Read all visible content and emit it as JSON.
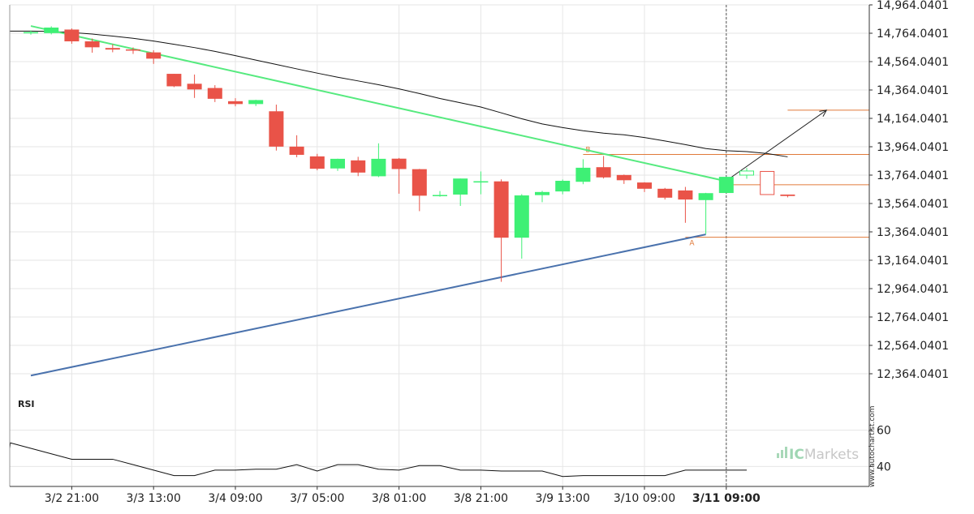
{
  "chart_data": [
    {
      "type": "candlestick",
      "title": "",
      "ylabel": "",
      "ylim": [
        12164.0401,
        14964.0401
      ],
      "y_ticks": [
        "14,964.0401",
        "14,764.0401",
        "14,564.0401",
        "14,364.0401",
        "14,164.0401",
        "13,964.0401",
        "13,764.0401",
        "13,564.0401",
        "13,364.0401",
        "13,164.0401",
        "12,964.0401",
        "12,764.0401",
        "12,564.0401",
        "12,364.0401"
      ],
      "y_tick_values": [
        14964.0401,
        14764.0401,
        14564.0401,
        14364.0401,
        14164.0401,
        13964.0401,
        13764.0401,
        13564.0401,
        13364.0401,
        13164.0401,
        12964.0401,
        12764.0401,
        12564.0401,
        12364.0401
      ],
      "x_ticks": [
        {
          "label": "3/2 21:00",
          "index": 2
        },
        {
          "label": "3/3 13:00",
          "index": 6
        },
        {
          "label": "3/4 09:00",
          "index": 10
        },
        {
          "label": "3/7 05:00",
          "index": 14
        },
        {
          "label": "3/8 01:00",
          "index": 18
        },
        {
          "label": "3/8 21:00",
          "index": 22
        },
        {
          "label": "3/9 13:00",
          "index": 26
        },
        {
          "label": "3/10 09:00",
          "index": 30
        },
        {
          "label": "3/11 09:00",
          "index": 34
        }
      ],
      "highlight_tick_index": 8,
      "candles": [
        {
          "o": 14764,
          "h": 14784,
          "l": 14754,
          "c": 14772
        },
        {
          "o": 14765,
          "h": 14813,
          "l": 14756,
          "c": 14804
        },
        {
          "o": 14790,
          "h": 14798,
          "l": 14690,
          "c": 14707
        },
        {
          "o": 14707,
          "h": 14727,
          "l": 14627,
          "c": 14665
        },
        {
          "o": 14660,
          "h": 14687,
          "l": 14630,
          "c": 14649
        },
        {
          "o": 14650,
          "h": 14664,
          "l": 14618,
          "c": 14648
        },
        {
          "o": 14629,
          "h": 14644,
          "l": 14548,
          "c": 14585
        },
        {
          "o": 14478,
          "h": 14478,
          "l": 14384,
          "c": 14390
        },
        {
          "o": 14408,
          "h": 14473,
          "l": 14308,
          "c": 14368
        },
        {
          "o": 14378,
          "h": 14398,
          "l": 14279,
          "c": 14302
        },
        {
          "o": 14285,
          "h": 14306,
          "l": 14249,
          "c": 14265
        },
        {
          "o": 14265,
          "h": 14295,
          "l": 14251,
          "c": 14293
        },
        {
          "o": 14214,
          "h": 14261,
          "l": 13937,
          "c": 13965
        },
        {
          "o": 13965,
          "h": 14045,
          "l": 13890,
          "c": 13907
        },
        {
          "o": 13896,
          "h": 13914,
          "l": 13798,
          "c": 13809
        },
        {
          "o": 13811,
          "h": 13880,
          "l": 13794,
          "c": 13879
        },
        {
          "o": 13868,
          "h": 13893,
          "l": 13757,
          "c": 13782
        },
        {
          "o": 13756,
          "h": 13988,
          "l": 13750,
          "c": 13879
        },
        {
          "o": 13880,
          "h": 13885,
          "l": 13633,
          "c": 13807
        },
        {
          "o": 13806,
          "h": 13808,
          "l": 13510,
          "c": 13619
        },
        {
          "o": 13618,
          "h": 13652,
          "l": 13612,
          "c": 13624
        },
        {
          "o": 13627,
          "h": 13740,
          "l": 13547,
          "c": 13740
        },
        {
          "o": 13712,
          "h": 13790,
          "l": 13629,
          "c": 13721
        },
        {
          "o": 13720,
          "h": 13734,
          "l": 13012,
          "c": 13323
        },
        {
          "o": 13323,
          "h": 13630,
          "l": 13175,
          "c": 13621
        },
        {
          "o": 13623,
          "h": 13653,
          "l": 13573,
          "c": 13645
        },
        {
          "o": 13649,
          "h": 13733,
          "l": 13629,
          "c": 13724
        },
        {
          "o": 13717,
          "h": 13876,
          "l": 13700,
          "c": 13816
        },
        {
          "o": 13820,
          "h": 13899,
          "l": 13740,
          "c": 13748
        },
        {
          "o": 13765,
          "h": 13768,
          "l": 13702,
          "c": 13728
        },
        {
          "o": 13712,
          "h": 13714,
          "l": 13645,
          "c": 13668
        },
        {
          "o": 13668,
          "h": 13674,
          "l": 13592,
          "c": 13605
        },
        {
          "o": 13656,
          "h": 13681,
          "l": 13428,
          "c": 13592
        },
        {
          "o": 13588,
          "h": 13639,
          "l": 13349,
          "c": 13637
        },
        {
          "o": 13638,
          "h": 13752,
          "l": 13638,
          "c": 13752
        },
        {
          "o": 13764,
          "h": 13815,
          "l": 13738,
          "c": 13793,
          "hollow": true
        },
        {
          "o": 13790,
          "h": 13790,
          "l": 13627,
          "c": 13627,
          "hollow": true
        },
        {
          "o": 13627,
          "h": 13627,
          "l": 13607,
          "c": 13617
        }
      ],
      "moving_average": [
        14779,
        14779,
        14779,
        14777,
        14769,
        14758,
        14744,
        14728,
        14709,
        14686,
        14663,
        14636,
        14606,
        14575,
        14544,
        14513,
        14483,
        14454,
        14428,
        14401,
        14372,
        14339,
        14304,
        14274,
        14244,
        14203,
        14161,
        14125,
        14099,
        14077,
        14060,
        14048,
        14029,
        14005,
        13979,
        13951,
        13936,
        13930,
        13916,
        13893
      ],
      "moving_average_start_index": -2,
      "trendlines": [
        {
          "name": "resistance",
          "color": "#56ea7f",
          "from_index": 0,
          "from_value": 14815,
          "to_index": 34,
          "to_value": 13721
        },
        {
          "name": "support",
          "color": "#4a72ad",
          "from_index": 0,
          "from_value": 12351,
          "to_index": 33,
          "to_value": 13346
        }
      ],
      "levels": [
        {
          "value": 14222,
          "color": "#e07a3a",
          "from_index": 37
        },
        {
          "value": 13910,
          "color": "#e07a3a",
          "from_index": 27,
          "label": "B"
        },
        {
          "value": 13696,
          "color": "#e07a3a",
          "from_index": 34
        },
        {
          "value": 13326,
          "color": "#e07a3a",
          "from_index": 32,
          "label": "A"
        }
      ],
      "forecast_arrow": {
        "from_index": 34,
        "from_value": 13724,
        "to_index": 38.9,
        "to_value": 14222
      },
      "current_time_index": 34,
      "colors": {
        "up": "#3ef075",
        "down": "#e95348",
        "grid": "#e6e6e6",
        "axis": "#333333",
        "level": "#e07a3a"
      }
    },
    {
      "type": "line",
      "name": "RSI",
      "ylim": [
        29,
        67
      ],
      "y_ticks": [
        "60",
        "40"
      ],
      "y_tick_values": [
        60,
        40
      ],
      "values": [
        50,
        53,
        50,
        47,
        44,
        44,
        44,
        41,
        38,
        35,
        35,
        38,
        38,
        38.5,
        38.5,
        41,
        37.5,
        41,
        41,
        38.5,
        38,
        40.5,
        40.5,
        38,
        38,
        37.5,
        37.5,
        37.5,
        34.5,
        35,
        35,
        35,
        35,
        35,
        38,
        38,
        38,
        38
      ],
      "start_index": -2,
      "color": "#111111"
    }
  ],
  "labels": {
    "rsi": "RSI",
    "watermark_pre": "IC",
    "watermark_post": "Markets",
    "credit": "www.autochartist.com"
  }
}
